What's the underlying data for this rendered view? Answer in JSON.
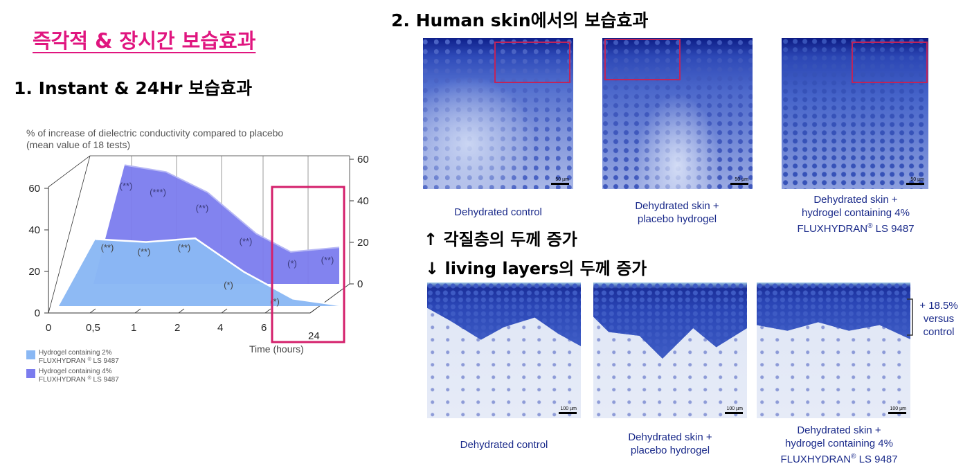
{
  "title": "즉각적 & 장시간 보습효과",
  "section1": {
    "heading": "1. Instant & 24Hr 보습효과",
    "chart": {
      "title_line1": "% of increase of dielectric conductivity compared to placebo",
      "title_line2": "(mean value of 18 tests)",
      "xlabel": "Time (hours)",
      "x_ticks": [
        "0",
        "0,5",
        "1",
        "2",
        "4",
        "6",
        "24"
      ],
      "left_ticks": [
        "0",
        "20",
        "40",
        "60"
      ],
      "right_ticks": [
        "0",
        "20",
        "40",
        "60"
      ],
      "legend": [
        {
          "label_line1": "Hydrogel containing 2%",
          "label_line2": "FLUXHYDRAN",
          "label_line3": "LS 9487",
          "color": "#8ab8f4"
        },
        {
          "label_line1": "Hydrogel  containing 4%",
          "label_line2": "FLUXHYDRAN",
          "label_line3": "LS 9487",
          "color": "#7b7cee"
        }
      ],
      "annotations_4pct": [
        "(**)",
        "(***)",
        "(**)",
        "(**)",
        "(*)",
        "(**)"
      ],
      "annotations_2pct": [
        "(**)",
        "(**)",
        "(**)",
        "(*)",
        "(*)"
      ]
    }
  },
  "chart_data": {
    "type": "area",
    "x": [
      "0",
      "0,5",
      "1",
      "2",
      "4",
      "6",
      "24"
    ],
    "series": [
      {
        "name": "Hydrogel containing 2% FLUXHYDRAN LS 9487",
        "values": [
          0,
          31,
          30,
          32,
          17,
          5,
          2
        ]
      },
      {
        "name": "Hydrogel containing 4% FLUXHYDRAN LS 9487",
        "values": [
          0,
          52,
          49,
          40,
          22,
          14,
          16
        ]
      }
    ],
    "title": "% of increase of dielectric conductivity compared to placebo (mean value of 18 tests)",
    "xlabel": "Time (hours)",
    "ylim": [
      0,
      60
    ],
    "grid": true,
    "legend_position": "bottom-left"
  },
  "section2": {
    "heading": "2. Human skin에서의 보습효과",
    "top_captions": [
      {
        "line1": "Dehydrated control",
        "line2": "",
        "line3": ""
      },
      {
        "line1": "Dehydrated skin +",
        "line2": "placebo hydrogel",
        "line3": ""
      },
      {
        "line1": "Dehydrated skin +",
        "line2": "hydrogel containing 4%",
        "line3": "FLUXHYDRAN",
        "suffix": "LS 9487"
      }
    ],
    "note1": "↑ 각질층의 두께 증가",
    "note2": "↓ living layers의 두께 증가",
    "bottom_captions": [
      {
        "line1": "Dehydrated control",
        "line2": "",
        "line3": ""
      },
      {
        "line1": "Dehydrated skin +",
        "line2": "placebo hydrogel",
        "line3": ""
      },
      {
        "line1": "Dehydrated skin +",
        "line2": "hydrogel containing 4%",
        "line3": "FLUXHYDRAN",
        "suffix": "LS 9487"
      }
    ],
    "increase_label_line1": "+ 18.5%",
    "increase_label_line2": "versus",
    "increase_label_line3": "control",
    "scale_top": "50 µm",
    "scale_bottom": "100 µm",
    "registered": "®"
  }
}
